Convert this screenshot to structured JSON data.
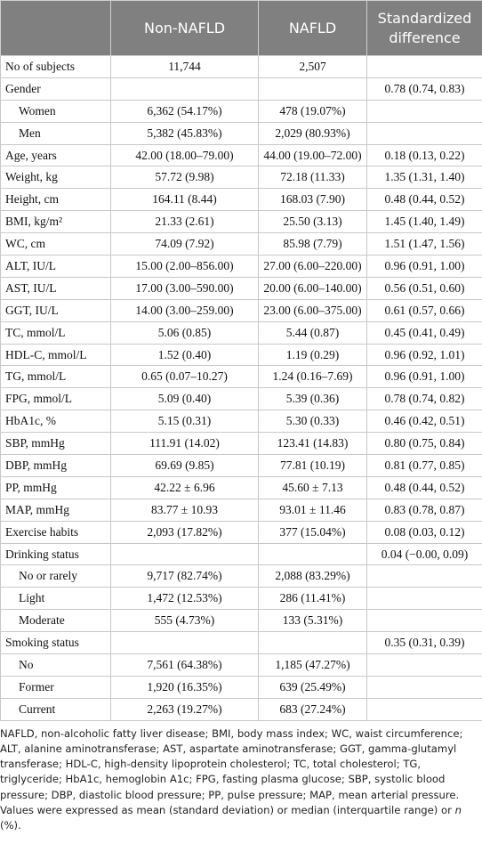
{
  "table": {
    "header": [
      "Non-NAFLD",
      "NAFLD",
      "Standardized difference"
    ],
    "rows": [
      [
        "No of subjects",
        "11,744",
        "2,507",
        null
      ],
      [
        "Gender",
        null,
        null,
        "0.78 (0.74, 0.83)"
      ],
      [
        "Women",
        "6,362 (54.17%)",
        "478 (19.07%)",
        null
      ],
      [
        "Men",
        "5,382 (45.83%)",
        "2,029 (80.93%)",
        null
      ],
      [
        "Age, years",
        "42.00 (18.00–79.00)",
        "44.00 (19.00–72.00)",
        "0.18 (0.13, 0.22)"
      ],
      [
        "Weight, kg",
        "57.72 (9.98)",
        "72.18 (11.33)",
        "1.35 (1.31, 1.40)"
      ],
      [
        "Height, cm",
        "164.11 (8.44)",
        "168.03 (7.90)",
        "0.48 (0.44, 0.52)"
      ],
      [
        "BMI, kg/m²",
        "21.33 (2.61)",
        "25.50 (3.13)",
        "1.45 (1.40, 1.49)"
      ],
      [
        "WC, cm",
        "74.09 (7.92)",
        "85.98 (7.79)",
        "1.51 (1.47, 1.56)"
      ],
      [
        "ALT, IU/L",
        "15.00 (2.00–856.00)",
        "27.00 (6.00–220.00)",
        "0.96 (0.91, 1.00)"
      ],
      [
        "AST, IU/L",
        "17.00 (3.00–590.00)",
        "20.00 (6.00–140.00)",
        "0.56 (0.51, 0.60)"
      ],
      [
        "GGT, IU/L",
        "14.00 (3.00–259.00)",
        "23.00 (6.00–375.00)",
        "0.61 (0.57, 0.66)"
      ],
      [
        "TC, mmol/L",
        "5.06 (0.85)",
        "5.44 (0.87)",
        "0.45 (0.41, 0.49)"
      ],
      [
        "HDL-C, mmol/L",
        "1.52 (0.40)",
        "1.19 (0.29)",
        "0.96 (0.92, 1.01)"
      ],
      [
        "TG, mmol/L",
        "0.65 (0.07–10.27)",
        "1.24 (0.16–7.69)",
        "0.96 (0.91, 1.00)"
      ],
      [
        "FPG, mmol/L",
        "5.09 (0.40)",
        "5.39 (0.36)",
        "0.78 (0.74, 0.82)"
      ],
      [
        "HbA1c, %",
        "5.15 (0.31)",
        "5.30 (0.33)",
        "0.46 (0.42, 0.51)"
      ],
      [
        "SBP, mmHg",
        "111.91 (14.02)",
        "123.41 (14.83)",
        "0.80 (0.75, 0.84)"
      ],
      [
        "DBP, mmHg",
        "69.69 (9.85)",
        "77.81 (10.19)",
        "0.81 (0.77, 0.85)"
      ],
      [
        "PP, mmHg",
        "42.22 ± 6.96",
        "45.60 ± 7.13",
        "0.48 (0.44, 0.52)"
      ],
      [
        "MAP, mmHg",
        "83.77 ± 10.93",
        "93.01 ± 11.46",
        "0.83 (0.78, 0.87)"
      ],
      [
        "Exercise habits",
        "2,093 (17.82%)",
        "377 (15.04%)",
        "0.08 (0.03, 0.12)"
      ],
      [
        "Drinking status",
        null,
        null,
        "0.04 (−0.00, 0.09)"
      ],
      [
        "No or rarely",
        "9,717 (82.74%)",
        "2,088 (83.29%)",
        null
      ],
      [
        "Light",
        "1,472 (12.53%)",
        "286 (11.41%)",
        null
      ],
      [
        "Moderate",
        "555 (4.73%)",
        "133 (5.31%)",
        null
      ],
      [
        "Smoking status",
        null,
        null,
        "0.35 (0.31, 0.39)"
      ],
      [
        "No",
        "7,561 (64.38%)",
        "1,185 (47.27%)",
        null
      ],
      [
        "Former",
        "1,920 (16.35%)",
        "639 (25.49%)",
        null
      ],
      [
        "Current",
        "2,263 (19.27%)",
        "683 (27.24%)",
        null
      ]
    ]
  },
  "notes": {
    "abbreviations": "NAFLD, non-alcoholic fatty liver disease; BMI, body mass index; WC, waist circumference; ALT, alanine aminotransferase; AST, aspartate aminotransferase; GGT, gamma-glutamyl transferase; HDL-C, high-density lipoprotein cholesterol; TC, total cholesterol; TG, triglyceride; HbA1c, hemoglobin A1c; FPG, fasting plasma glucose; SBP, systolic blood pressure; DBP, diastolic blood pressure; PP, pulse pressure; MAP, mean arterial pressure.",
    "values": [
      "Values were expressed as mean (standard deviation) or median (interquartile range) or ",
      "n",
      " (%)."
    ]
  }
}
